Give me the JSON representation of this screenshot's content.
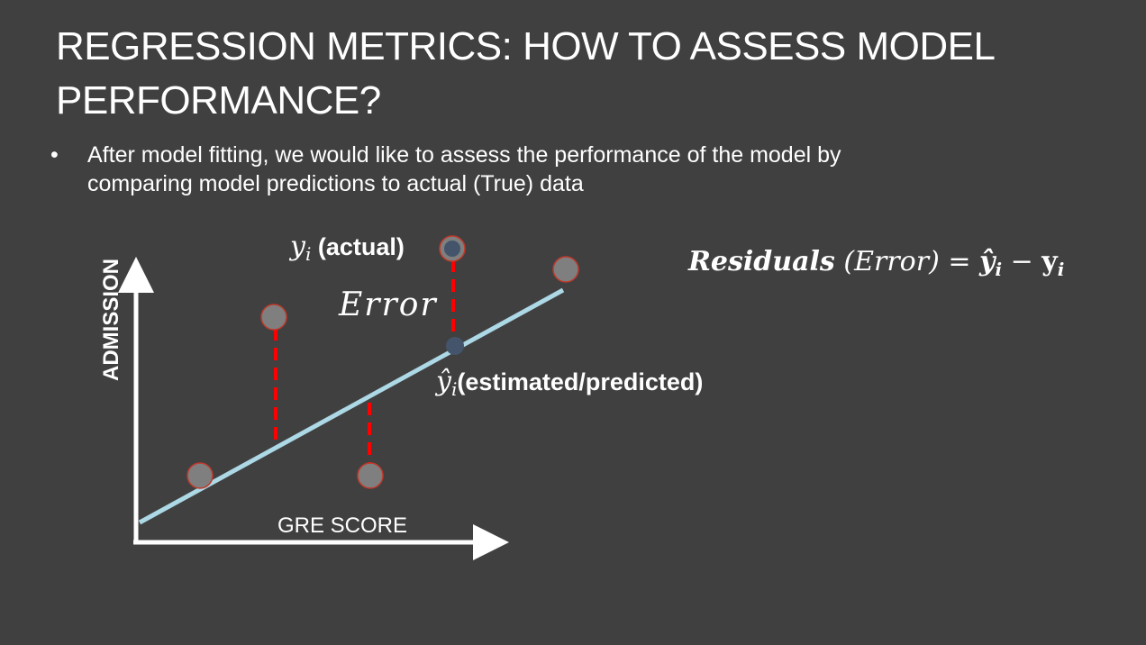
{
  "slide": {
    "title_line1": "REGRESSION METRICS: HOW TO ASSESS MODEL",
    "title_line2": "PERFORMANCE?",
    "bullet_marker": "•",
    "bullet_line1": "After model fitting, we would like to assess the performance of the model by",
    "bullet_line2": "comparing model predictions to actual (True) data"
  },
  "diagram": {
    "y_axis_label": "ADMISSION",
    "x_axis_label": "GRE SCORE",
    "actual_symbol": "y",
    "actual_subscript": "i",
    "actual_label": " (actual)",
    "error_label": "Error",
    "predicted_symbol": "ŷ",
    "predicted_subscript": "i",
    "predicted_label": "(estimated/predicted)"
  },
  "formula": {
    "lhs": "Residuals",
    "paren": "(Error)",
    "equals": "=",
    "yhat": "ŷ",
    "yhat_sub": "i",
    "minus": "−",
    "y": "y",
    "y_sub": "i"
  },
  "colors": {
    "background": "#404040",
    "regression_line": "#add8e6",
    "error_line": "#ff0000",
    "point_fill": "#7f7f7f",
    "point_stroke": "#c0392b",
    "highlight_point": "#44546a"
  }
}
